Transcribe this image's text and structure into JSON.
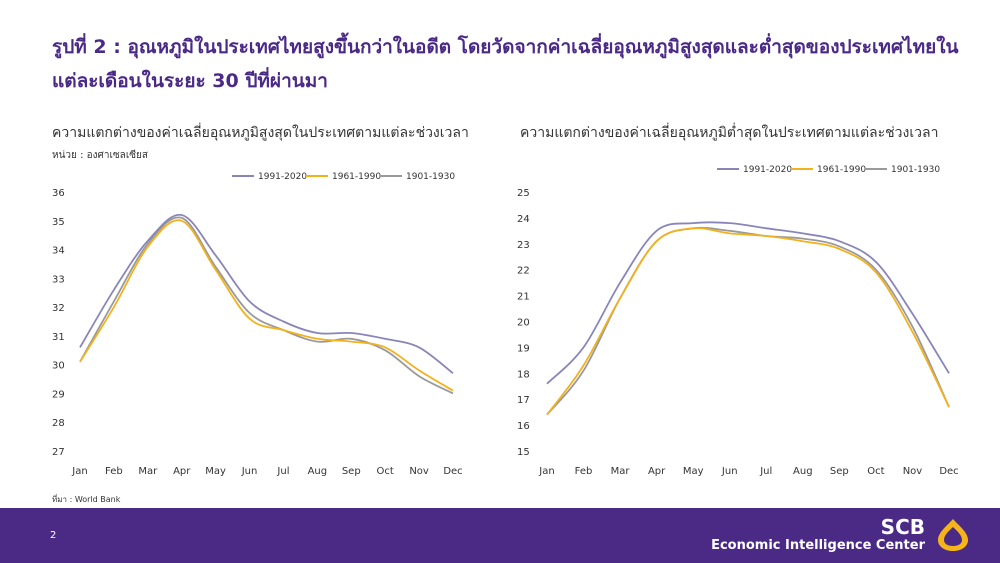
{
  "page": {
    "title": "รูปที่ 2 : อุณหภูมิในประเทศไทยสูงขึ้นกว่าในอดีต โดยวัดจากค่าเฉลี่ยอุณหภูมิสูงสุดและต่ำสุดของประเทศไทยในแต่ละเดือนในระยะ 30 ปีที่ผ่านมา",
    "source": "ที่มา :  World Bank",
    "page_number": "2",
    "brand_name": "SCB",
    "brand_subtitle": "Economic Intelligence Center",
    "logo_icon": "scb-logo-icon",
    "colors": {
      "accent": "#4b2a86",
      "logo": "#f4b41a"
    }
  },
  "chart_data": [
    {
      "type": "line",
      "title": "ความแตกต่างของค่าเฉลี่ยอุณหภูมิสูงสุดในประเทศตามแต่ละช่วงเวลา",
      "unit_label": "หน่วย : องศาเซลเซียส",
      "xlabel": "",
      "ylabel": "",
      "categories": [
        "Jan",
        "Feb",
        "Mar",
        "Apr",
        "May",
        "Jun",
        "Jul",
        "Aug",
        "Sep",
        "Oct",
        "Nov",
        "Dec"
      ],
      "ylim": [
        27,
        36
      ],
      "yticks": [
        27,
        28,
        29,
        30,
        31,
        32,
        33,
        34,
        35,
        36
      ],
      "legend_position": "top-right",
      "grid": false,
      "series": [
        {
          "name": "1991-2020",
          "color": "#8a85b8",
          "values": [
            30.6,
            32.6,
            34.3,
            35.2,
            33.8,
            32.2,
            31.5,
            31.1,
            31.1,
            30.9,
            30.6,
            29.7
          ]
        },
        {
          "name": "1961-1990",
          "color": "#f2b21d",
          "values": [
            30.1,
            32.0,
            34.1,
            35.0,
            33.3,
            31.6,
            31.2,
            30.9,
            30.8,
            30.6,
            29.8,
            29.1
          ]
        },
        {
          "name": "1901-1930",
          "color": "#9a9a9a",
          "values": [
            30.1,
            32.2,
            34.2,
            35.1,
            33.4,
            31.8,
            31.2,
            30.8,
            30.9,
            30.5,
            29.6,
            29.0
          ]
        }
      ]
    },
    {
      "type": "line",
      "title": "ความแตกต่างของค่าเฉลี่ยอุณหภูมิต่ำสุดในประเทศตามแต่ละช่วงเวลา",
      "xlabel": "",
      "ylabel": "",
      "categories": [
        "Jan",
        "Feb",
        "Mar",
        "Apr",
        "May",
        "Jun",
        "Jul",
        "Aug",
        "Sep",
        "Oct",
        "Nov",
        "Dec"
      ],
      "ylim": [
        15,
        25
      ],
      "yticks": [
        15,
        16,
        17,
        18,
        19,
        20,
        21,
        22,
        23,
        24,
        25
      ],
      "legend_position": "top-right",
      "grid": false,
      "series": [
        {
          "name": "1991-2020",
          "color": "#8a85b8",
          "values": [
            17.6,
            19.0,
            21.5,
            23.5,
            23.8,
            23.8,
            23.6,
            23.4,
            23.1,
            22.3,
            20.3,
            18.0
          ]
        },
        {
          "name": "1961-1990",
          "color": "#f2b21d",
          "values": [
            16.4,
            18.3,
            20.9,
            23.1,
            23.6,
            23.4,
            23.3,
            23.1,
            22.8,
            21.9,
            19.6,
            16.7
          ]
        },
        {
          "name": "1901-1930",
          "color": "#9a9a9a",
          "values": [
            16.4,
            18.1,
            20.9,
            23.1,
            23.6,
            23.5,
            23.3,
            23.2,
            22.9,
            22.0,
            19.8,
            16.7
          ]
        }
      ]
    }
  ]
}
